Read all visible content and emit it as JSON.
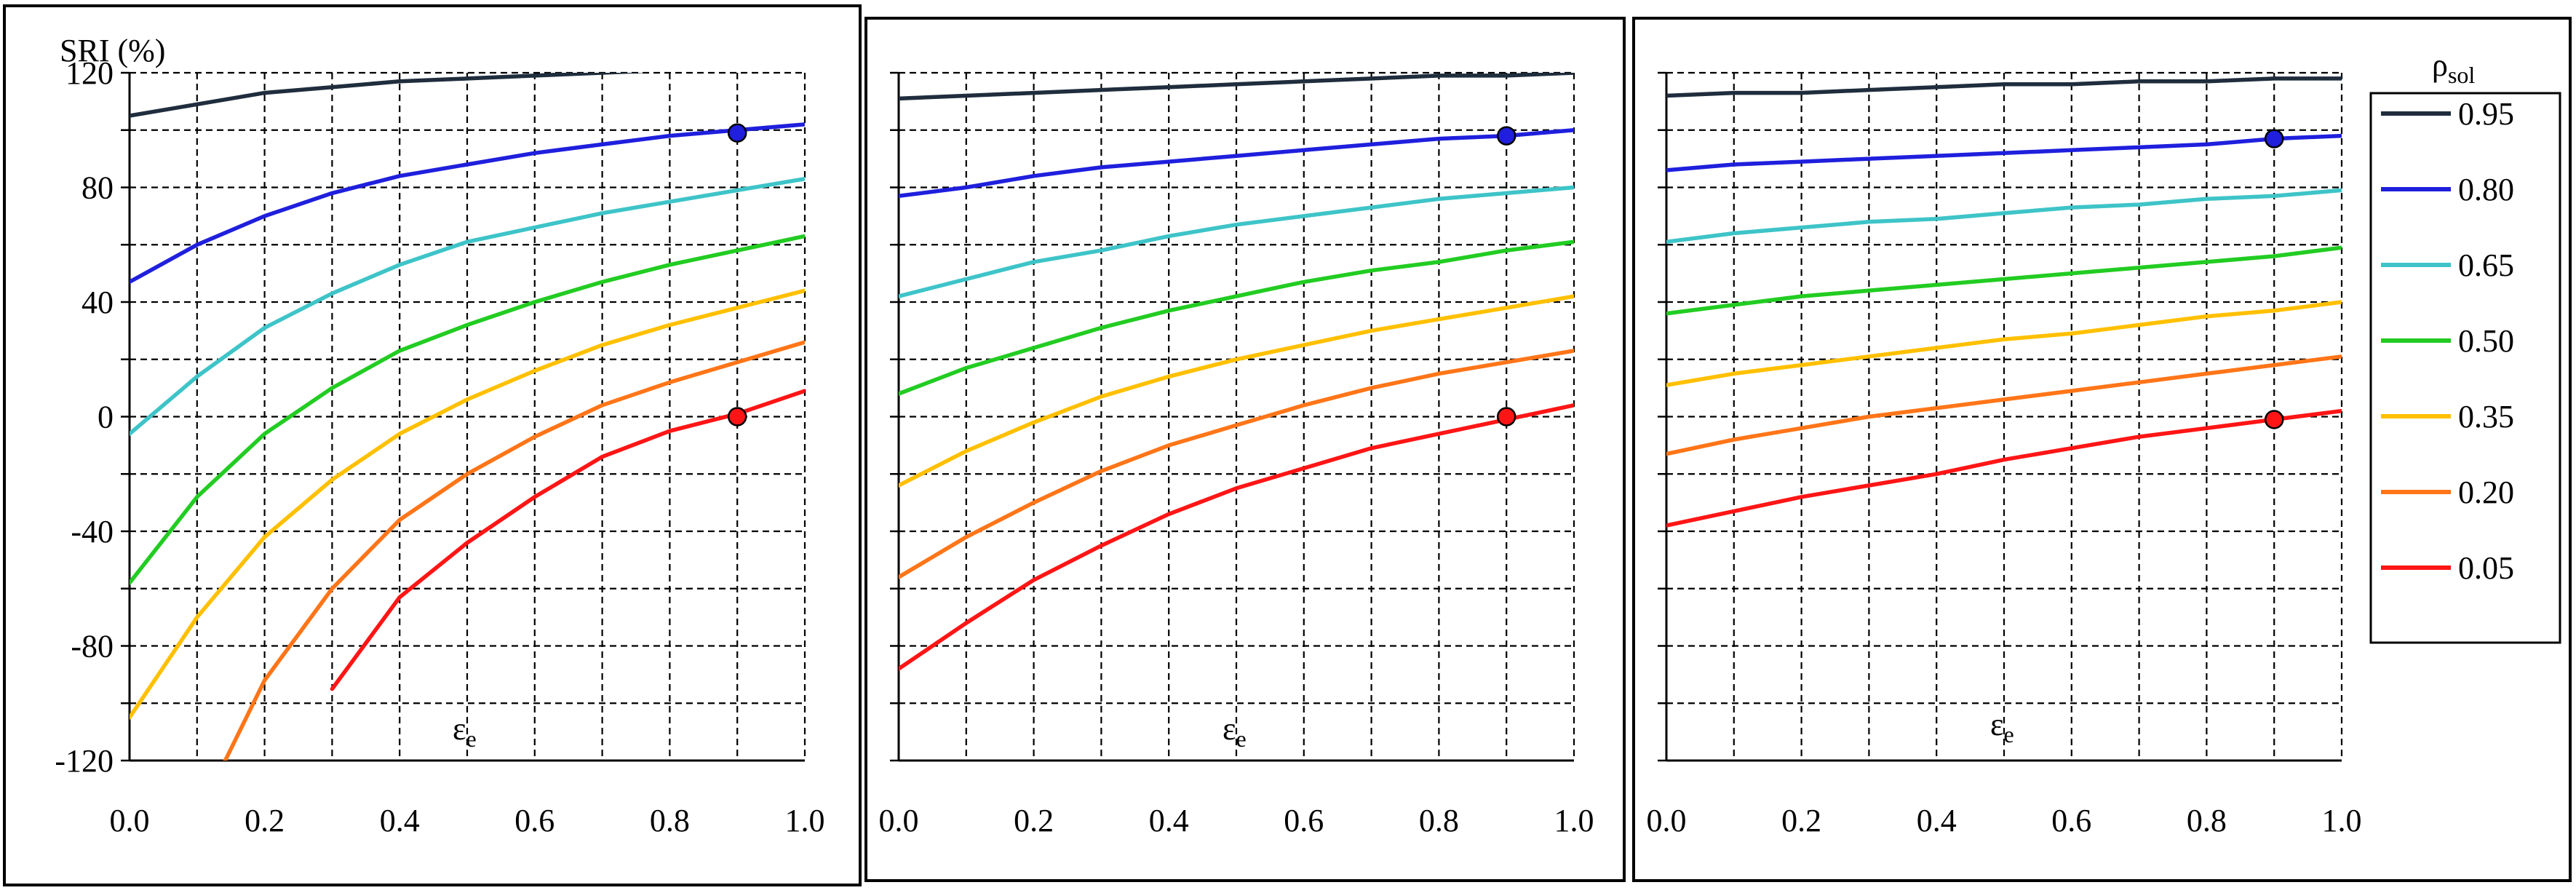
{
  "chart_data": [
    {
      "type": "line",
      "panel": "left",
      "ylabel": "SRI (%)",
      "xlabel": "εe",
      "xlim": [
        0.0,
        1.0
      ],
      "ylim": [
        -120,
        120
      ],
      "x_ticks": [
        "0.0",
        "0.2",
        "0.4",
        "0.6",
        "0.8",
        "1.0"
      ],
      "y_ticks": [
        "120",
        "80",
        "40",
        "0",
        "-40",
        "-80",
        "-120"
      ],
      "grid": true,
      "x": [
        0.0,
        0.1,
        0.2,
        0.3,
        0.4,
        0.5,
        0.6,
        0.7,
        0.8,
        0.9,
        1.0
      ],
      "series": [
        {
          "name": "0.95",
          "color": "#1f2d3d",
          "values": [
            105,
            109,
            113,
            115,
            117,
            118,
            119,
            120,
            121,
            122,
            122
          ]
        },
        {
          "name": "0.80",
          "color": "#1f1fdd",
          "values": [
            47,
            60,
            70,
            78,
            84,
            88,
            92,
            95,
            98,
            100,
            102
          ]
        },
        {
          "name": "0.65",
          "color": "#3ec4c8",
          "values": [
            -6,
            14,
            31,
            43,
            53,
            61,
            66,
            71,
            75,
            79,
            83
          ]
        },
        {
          "name": "0.50",
          "color": "#22cc22",
          "values": [
            -58,
            -28,
            -6,
            10,
            23,
            32,
            40,
            47,
            53,
            58,
            63
          ]
        },
        {
          "name": "0.35",
          "color": "#ffc000",
          "values": [
            -105,
            -70,
            -42,
            -22,
            -6,
            6,
            16,
            25,
            32,
            38,
            44
          ]
        },
        {
          "name": "0.20",
          "color": "#ff7518",
          "values": [
            null,
            -140,
            -92,
            -60,
            -36,
            -20,
            -7,
            4,
            12,
            19,
            26
          ]
        },
        {
          "name": "0.05",
          "color": "#ff1515",
          "values": [
            null,
            null,
            null,
            -95,
            -63,
            -44,
            -28,
            -14,
            -5,
            1,
            9
          ]
        }
      ],
      "markers": [
        {
          "x": 0.9,
          "y": 99,
          "color": "#1f1fdd"
        },
        {
          "x": 0.9,
          "y": 0,
          "color": "#ff1515"
        }
      ]
    },
    {
      "type": "line",
      "panel": "middle",
      "xlabel": "εe",
      "xlim": [
        0.0,
        1.0
      ],
      "ylim": [
        -120,
        120
      ],
      "x_ticks": [
        "0.0",
        "0.2",
        "0.4",
        "0.6",
        "0.8",
        "1.0"
      ],
      "grid": true,
      "x": [
        0.0,
        0.1,
        0.2,
        0.3,
        0.4,
        0.5,
        0.6,
        0.7,
        0.8,
        0.9,
        1.0
      ],
      "series": [
        {
          "name": "0.95",
          "color": "#1f2d3d",
          "values": [
            111,
            112,
            113,
            114,
            115,
            116,
            117,
            118,
            119,
            119,
            120
          ]
        },
        {
          "name": "0.80",
          "color": "#1f1fdd",
          "values": [
            77,
            80,
            84,
            87,
            89,
            91,
            93,
            95,
            97,
            98,
            100
          ]
        },
        {
          "name": "0.65",
          "color": "#3ec4c8",
          "values": [
            42,
            48,
            54,
            58,
            63,
            67,
            70,
            73,
            76,
            78,
            80
          ]
        },
        {
          "name": "0.50",
          "color": "#22cc22",
          "values": [
            8,
            17,
            24,
            31,
            37,
            42,
            47,
            51,
            54,
            58,
            61
          ]
        },
        {
          "name": "0.35",
          "color": "#ffc000",
          "values": [
            -24,
            -12,
            -2,
            7,
            14,
            20,
            25,
            30,
            34,
            38,
            42
          ]
        },
        {
          "name": "0.20",
          "color": "#ff7518",
          "values": [
            -56,
            -42,
            -30,
            -19,
            -10,
            -3,
            4,
            10,
            15,
            19,
            23
          ]
        },
        {
          "name": "0.05",
          "color": "#ff1515",
          "values": [
            -88,
            -72,
            -57,
            -45,
            -34,
            -25,
            -18,
            -11,
            -6,
            -1,
            4
          ]
        }
      ],
      "markers": [
        {
          "x": 0.9,
          "y": 98,
          "color": "#1f1fdd"
        },
        {
          "x": 0.9,
          "y": 0,
          "color": "#ff1515"
        }
      ]
    },
    {
      "type": "line",
      "panel": "right",
      "xlabel": "εe",
      "xlim": [
        0.0,
        1.0
      ],
      "ylim": [
        -120,
        120
      ],
      "x_ticks": [
        "0.0",
        "0.2",
        "0.4",
        "0.6",
        "0.8",
        "1.0"
      ],
      "grid": true,
      "legend": {
        "title": "ρsol",
        "placement": "outside-right"
      },
      "x": [
        0.0,
        0.1,
        0.2,
        0.3,
        0.4,
        0.5,
        0.6,
        0.7,
        0.8,
        0.9,
        1.0
      ],
      "series": [
        {
          "name": "0.95",
          "color": "#1f2d3d",
          "values": [
            112,
            113,
            113,
            114,
            115,
            116,
            116,
            117,
            117,
            118,
            118
          ]
        },
        {
          "name": "0.80",
          "color": "#1f1fdd",
          "values": [
            86,
            88,
            89,
            90,
            91,
            92,
            93,
            94,
            95,
            97,
            98
          ]
        },
        {
          "name": "0.65",
          "color": "#3ec4c8",
          "values": [
            61,
            64,
            66,
            68,
            69,
            71,
            73,
            74,
            76,
            77,
            79
          ]
        },
        {
          "name": "0.50",
          "color": "#22cc22",
          "values": [
            36,
            39,
            42,
            44,
            46,
            48,
            50,
            52,
            54,
            56,
            59
          ]
        },
        {
          "name": "0.35",
          "color": "#ffc000",
          "values": [
            11,
            15,
            18,
            21,
            24,
            27,
            29,
            32,
            35,
            37,
            40
          ]
        },
        {
          "name": "0.20",
          "color": "#ff7518",
          "values": [
            -13,
            -8,
            -4,
            0,
            3,
            6,
            9,
            12,
            15,
            18,
            21
          ]
        },
        {
          "name": "0.05",
          "color": "#ff1515",
          "values": [
            -38,
            -33,
            -28,
            -24,
            -20,
            -15,
            -11,
            -7,
            -4,
            -1,
            2
          ]
        }
      ],
      "markers": [
        {
          "x": 0.9,
          "y": 97,
          "color": "#1f1fdd"
        },
        {
          "x": 0.9,
          "y": -1,
          "color": "#ff1515"
        }
      ]
    }
  ]
}
